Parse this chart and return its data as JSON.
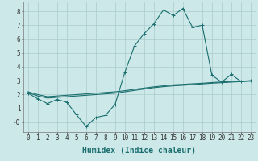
{
  "xlabel": "Humidex (Indice chaleur)",
  "background_color": "#cce8e8",
  "grid_color": "#aacccc",
  "line_color": "#1a6e6e",
  "xlim": [
    -0.5,
    23.5
  ],
  "ylim": [
    -0.7,
    8.7
  ],
  "x_ticks": [
    0,
    1,
    2,
    3,
    4,
    5,
    6,
    7,
    8,
    9,
    10,
    11,
    12,
    13,
    14,
    15,
    16,
    17,
    18,
    19,
    20,
    21,
    22,
    23
  ],
  "y_ticks": [
    0,
    1,
    2,
    3,
    4,
    5,
    6,
    7,
    8
  ],
  "y_tick_labels": [
    "-0",
    "1",
    "2",
    "3",
    "4",
    "5",
    "6",
    "7",
    "8"
  ],
  "series1_x": [
    0,
    1,
    2,
    3,
    4,
    5,
    6,
    7,
    8,
    9,
    10,
    11,
    12,
    13,
    14,
    15,
    16,
    17,
    18,
    19,
    20,
    21,
    22,
    23
  ],
  "series1_y": [
    2.1,
    1.7,
    1.35,
    1.65,
    1.45,
    0.55,
    -0.3,
    0.35,
    0.5,
    1.3,
    3.6,
    5.5,
    6.4,
    7.1,
    8.1,
    7.7,
    8.2,
    6.85,
    7.0,
    3.4,
    2.9,
    3.45,
    2.95,
    3.0
  ],
  "series2_x": [
    0,
    1,
    2,
    3,
    4,
    5,
    6,
    7,
    8,
    9,
    10,
    11,
    12,
    13,
    14,
    15,
    16,
    17,
    18,
    19,
    20,
    21,
    22,
    23
  ],
  "series2_y": [
    2.15,
    1.9,
    1.75,
    1.8,
    1.85,
    1.9,
    1.95,
    2.0,
    2.05,
    2.1,
    2.2,
    2.3,
    2.4,
    2.5,
    2.57,
    2.63,
    2.67,
    2.72,
    2.77,
    2.82,
    2.86,
    2.9,
    2.94,
    2.97
  ],
  "series3_x": [
    0,
    1,
    2,
    3,
    4,
    5,
    6,
    7,
    8,
    9,
    10,
    11,
    12,
    13,
    14,
    15,
    16,
    17,
    18,
    19,
    20,
    21,
    22,
    23
  ],
  "series3_y": [
    2.2,
    2.0,
    1.85,
    1.9,
    1.95,
    2.0,
    2.05,
    2.1,
    2.15,
    2.2,
    2.28,
    2.38,
    2.47,
    2.56,
    2.63,
    2.7,
    2.74,
    2.78,
    2.82,
    2.87,
    2.91,
    2.95,
    2.97,
    3.0
  ],
  "fontsize_xlabel": 7,
  "fontsize_tick": 5.5
}
